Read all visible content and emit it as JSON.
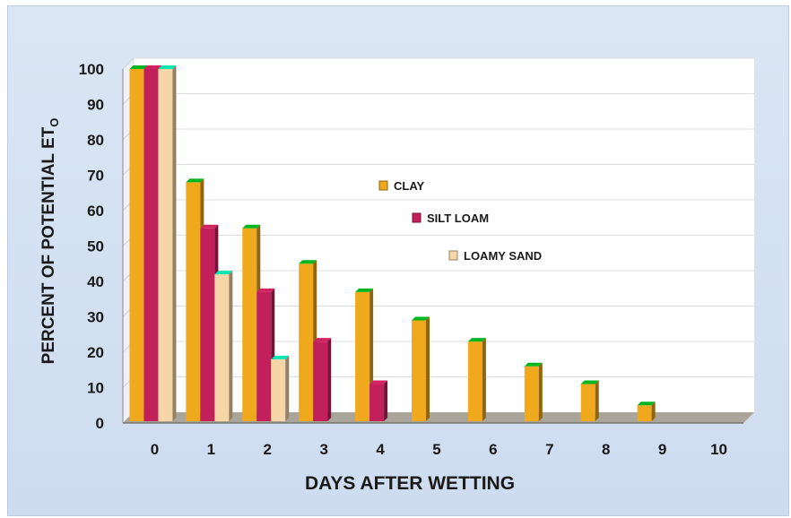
{
  "chart_data": {
    "type": "bar",
    "xlabel": "DAYS AFTER WETTING",
    "ylabel": {
      "main": "PERCENT OF POTENTIAL ET",
      "subscript": "O"
    },
    "categories": [
      "0",
      "1",
      "2",
      "3",
      "4",
      "5",
      "6",
      "7",
      "8",
      "9",
      "10"
    ],
    "yticks": [
      "0",
      "10",
      "20",
      "30",
      "40",
      "50",
      "60",
      "70",
      "80",
      "90",
      "100"
    ],
    "ylim": [
      0,
      100
    ],
    "grid": true,
    "legend_position": "center",
    "series": [
      {
        "name": "CLAY",
        "color": "#f0a81c",
        "values": [
          100,
          68,
          55,
          45,
          37,
          29,
          23,
          16,
          11,
          5,
          0
        ]
      },
      {
        "name": "SILT LOAM",
        "color": "#c2205a",
        "values": [
          100,
          55,
          37,
          23,
          11,
          0,
          0,
          0,
          0,
          0,
          0
        ]
      },
      {
        "name": "LOAMY SAND",
        "color": "#f6d6a6",
        "values": [
          100,
          42,
          18,
          0,
          0,
          0,
          0,
          0,
          0,
          0,
          0
        ]
      }
    ]
  }
}
